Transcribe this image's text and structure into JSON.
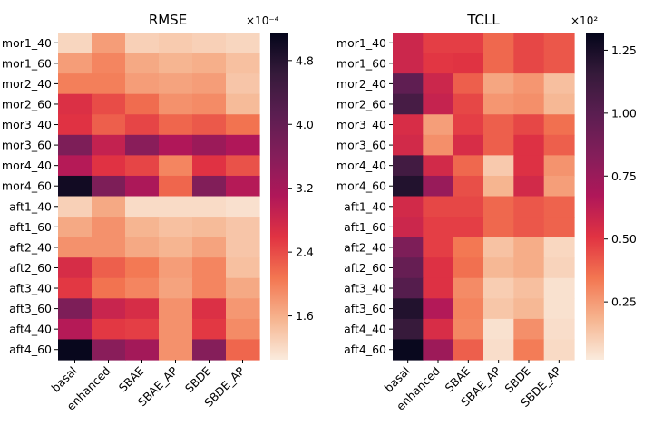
{
  "chart_data": [
    {
      "type": "heatmap",
      "title": "RMSE",
      "rows": [
        "mor1_40",
        "mor1_60",
        "mor2_40",
        "mor2_60",
        "mor3_40",
        "mor3_60",
        "mor4_40",
        "mor4_60",
        "aft1_40",
        "aft1_60",
        "aft2_40",
        "aft2_60",
        "aft3_40",
        "aft3_60",
        "aft4_40",
        "aft4_60"
      ],
      "columns": [
        "basal",
        "enhanced",
        "SBAE",
        "SBAE_AP",
        "SBDE",
        "SBDE_AP"
      ],
      "values": [
        [
          1.25,
          1.75,
          1.3,
          1.35,
          1.3,
          1.25
        ],
        [
          1.75,
          1.95,
          1.65,
          1.55,
          1.6,
          1.45
        ],
        [
          2.0,
          2.0,
          1.75,
          1.7,
          1.75,
          1.4
        ],
        [
          2.65,
          2.4,
          2.15,
          1.85,
          1.9,
          1.5
        ],
        [
          2.6,
          2.25,
          2.45,
          2.2,
          2.3,
          2.1
        ],
        [
          3.7,
          2.9,
          3.55,
          3.1,
          3.35,
          3.1
        ],
        [
          3.05,
          2.6,
          2.45,
          1.95,
          2.6,
          2.35
        ],
        [
          5.0,
          3.7,
          3.15,
          2.2,
          3.65,
          3.05
        ],
        [
          1.3,
          1.65,
          1.2,
          1.2,
          1.2,
          1.15
        ],
        [
          1.65,
          1.85,
          1.55,
          1.45,
          1.5,
          1.4
        ],
        [
          1.85,
          1.85,
          1.65,
          1.55,
          1.7,
          1.4
        ],
        [
          2.7,
          2.25,
          2.05,
          1.75,
          1.95,
          1.45
        ],
        [
          2.55,
          2.1,
          1.95,
          1.7,
          1.95,
          1.65
        ],
        [
          3.7,
          2.85,
          2.7,
          1.85,
          2.65,
          1.8
        ],
        [
          3.05,
          2.55,
          2.5,
          1.85,
          2.55,
          1.9
        ],
        [
          5.1,
          3.55,
          3.25,
          1.85,
          3.6,
          2.2
        ]
      ],
      "colorbar": {
        "ticks": [
          "1.6",
          "2.4",
          "3.2",
          "4.0",
          "4.8"
        ],
        "tick_values": [
          1.6,
          2.4,
          3.2,
          4.0,
          4.8
        ],
        "vmin": 1.05,
        "vmax": 5.15,
        "multiplier": "×10⁻⁴"
      }
    },
    {
      "type": "heatmap",
      "title": "TCLL",
      "rows": [
        "mor1_40",
        "mor1_60",
        "mor2_40",
        "mor2_60",
        "mor3_40",
        "mor3_60",
        "mor4_40",
        "mor4_60",
        "aft1_40",
        "aft1_60",
        "aft2_40",
        "aft2_60",
        "aft3_40",
        "aft3_60",
        "aft4_40",
        "aft4_60"
      ],
      "columns": [
        "basal",
        "enhanced",
        "SBAE",
        "SBAE_AP",
        "SBDE",
        "SBDE_AP"
      ],
      "values": [
        [
          0.58,
          0.48,
          0.48,
          0.38,
          0.46,
          0.42
        ],
        [
          0.58,
          0.5,
          0.51,
          0.38,
          0.46,
          0.42
        ],
        [
          0.98,
          0.58,
          0.4,
          0.22,
          0.26,
          0.15
        ],
        [
          1.08,
          0.6,
          0.46,
          0.26,
          0.28,
          0.17
        ],
        [
          0.54,
          0.24,
          0.48,
          0.4,
          0.46,
          0.36
        ],
        [
          0.56,
          0.28,
          0.54,
          0.4,
          0.52,
          0.4
        ],
        [
          1.1,
          0.56,
          0.38,
          0.12,
          0.52,
          0.27
        ],
        [
          1.22,
          0.76,
          0.44,
          0.18,
          0.56,
          0.24
        ],
        [
          0.56,
          0.46,
          0.46,
          0.38,
          0.42,
          0.39
        ],
        [
          0.58,
          0.48,
          0.48,
          0.38,
          0.42,
          0.39
        ],
        [
          0.86,
          0.48,
          0.34,
          0.14,
          0.2,
          0.08
        ],
        [
          0.95,
          0.52,
          0.36,
          0.17,
          0.2,
          0.09
        ],
        [
          1.02,
          0.52,
          0.29,
          0.11,
          0.15,
          0.05
        ],
        [
          1.22,
          0.66,
          0.31,
          0.13,
          0.17,
          0.05
        ],
        [
          1.15,
          0.54,
          0.3,
          0.05,
          0.28,
          0.06
        ],
        [
          1.3,
          0.74,
          0.4,
          0.06,
          0.33,
          0.07
        ]
      ],
      "colorbar": {
        "ticks": [
          "0.25",
          "0.50",
          "0.75",
          "1.00",
          "1.25"
        ],
        "tick_values": [
          0.25,
          0.5,
          0.75,
          1.0,
          1.25
        ],
        "vmin": 0.02,
        "vmax": 1.32,
        "multiplier": "×10²"
      }
    }
  ]
}
